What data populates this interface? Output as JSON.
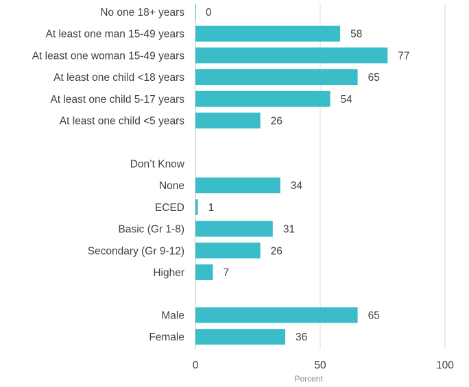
{
  "chart_data": {
    "type": "bar",
    "orientation": "horizontal",
    "color": "#3bbdc9",
    "gridline_color": "#d9d9d9",
    "xlabel": "Percent",
    "xlim": [
      0,
      100
    ],
    "xticks": [
      0,
      50,
      100
    ],
    "grid": true,
    "groups": [
      {
        "categories": [
          "No one 18+ years",
          "At least one man 15-49 years",
          "At least one woman 15-49 years",
          "At least one child <18 years",
          "At least one child 5-17 years",
          "At least one child <5 years"
        ],
        "values": [
          0,
          58,
          77,
          65,
          54,
          26
        ]
      },
      {
        "categories": [
          "Don’t Know",
          "None",
          "ECED",
          "Basic (Gr 1-8)",
          "Secondary (Gr 9-12)",
          "Higher"
        ],
        "values": [
          null,
          34,
          1,
          31,
          26,
          7
        ]
      },
      {
        "categories": [
          "Male",
          "Female"
        ],
        "values": [
          65,
          36
        ]
      }
    ]
  }
}
